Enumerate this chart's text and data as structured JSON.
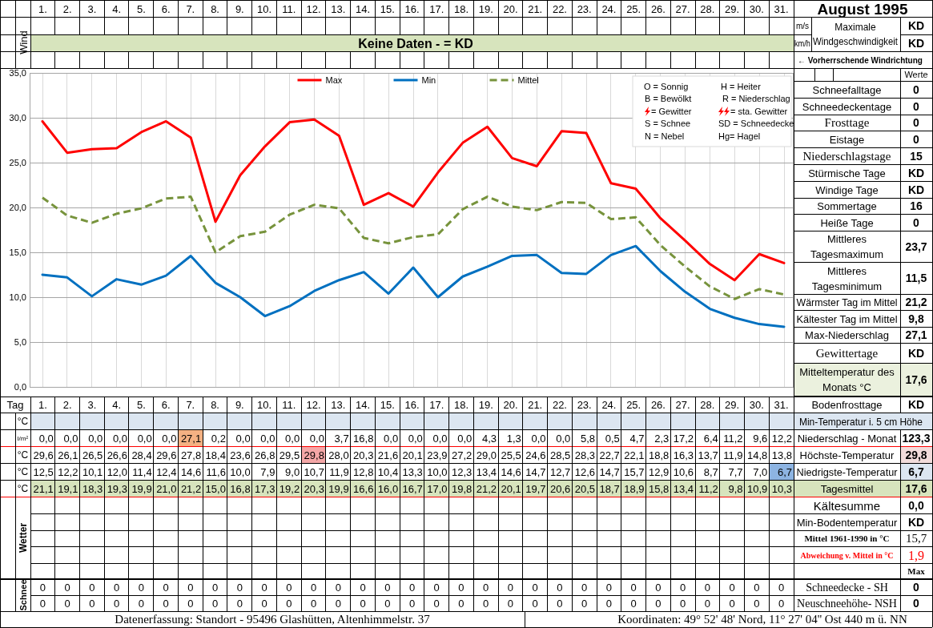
{
  "chart_data": {
    "type": "line",
    "title": "August 1995",
    "categories": [
      "1.",
      "2.",
      "3.",
      "4.",
      "5.",
      "6.",
      "7.",
      "8.",
      "9.",
      "10.",
      "11.",
      "12.",
      "13.",
      "14.",
      "15.",
      "16.",
      "17.",
      "18.",
      "19.",
      "20.",
      "21.",
      "22.",
      "23.",
      "24.",
      "25.",
      "26.",
      "27.",
      "28.",
      "29.",
      "30.",
      "31."
    ],
    "series": [
      {
        "name": "Max",
        "color": "#ff0000",
        "values": [
          29.6,
          26.1,
          26.5,
          26.6,
          28.4,
          29.6,
          27.8,
          18.4,
          23.6,
          26.8,
          29.5,
          29.8,
          28.0,
          20.3,
          21.6,
          20.1,
          23.9,
          27.2,
          29.0,
          25.5,
          24.6,
          28.5,
          28.3,
          22.7,
          22.1,
          18.8,
          16.3,
          13.7,
          11.9,
          14.8,
          13.8
        ],
        "value_labels": [
          "29,6",
          "26,1",
          "26,5",
          "26,6",
          "28,4",
          "29,6",
          "27,8",
          "18,4",
          "23,6",
          "26,8",
          "29,5",
          "29,8",
          "28,0",
          "20,3",
          "21,6",
          "20,1",
          "23,9",
          "27,2",
          "29,0",
          "25,5",
          "24,6",
          "28,5",
          "28,3",
          "22,7",
          "22,1",
          "18,8",
          "16,3",
          "13,7",
          "11,9",
          "14,8",
          "13,8"
        ]
      },
      {
        "name": "Min",
        "color": "#0070c0",
        "values": [
          12.5,
          12.2,
          10.1,
          12.0,
          11.4,
          12.4,
          14.6,
          11.6,
          10.0,
          7.9,
          9.0,
          10.7,
          11.9,
          12.8,
          10.4,
          13.3,
          10.0,
          12.3,
          13.4,
          14.6,
          14.7,
          12.7,
          12.6,
          14.7,
          15.7,
          12.9,
          10.6,
          8.7,
          7.7,
          7.0,
          6.7
        ],
        "value_labels": [
          "12,5",
          "12,2",
          "10,1",
          "12,0",
          "11,4",
          "12,4",
          "14,6",
          "11,6",
          "10,0",
          "7,9",
          "9,0",
          "10,7",
          "11,9",
          "12,8",
          "10,4",
          "13,3",
          "10,0",
          "12,3",
          "13,4",
          "14,6",
          "14,7",
          "12,7",
          "12,6",
          "14,7",
          "15,7",
          "12,9",
          "10,6",
          "8,7",
          "7,7",
          "7,0",
          "6,7"
        ]
      },
      {
        "name": "Mittel",
        "color": "#77933c",
        "line_style": "dashed",
        "values": [
          21.1,
          19.1,
          18.3,
          19.3,
          19.9,
          21.0,
          21.2,
          15.0,
          16.8,
          17.3,
          19.2,
          20.3,
          19.9,
          16.6,
          16.0,
          16.7,
          17.0,
          19.8,
          21.2,
          20.1,
          19.7,
          20.6,
          20.5,
          18.7,
          18.9,
          15.8,
          13.4,
          11.2,
          9.8,
          10.9,
          10.3
        ],
        "value_labels": [
          "21,1",
          "19,1",
          "18,3",
          "19,3",
          "19,9",
          "21,0",
          "21,2",
          "15,0",
          "16,8",
          "17,3",
          "19,2",
          "20,3",
          "19,9",
          "16,6",
          "16,0",
          "16,7",
          "17,0",
          "19,8",
          "21,2",
          "20,1",
          "19,7",
          "20,6",
          "20,5",
          "18,7",
          "18,9",
          "15,8",
          "13,4",
          "11,2",
          "9,8",
          "10,9",
          "10,3"
        ]
      }
    ],
    "ylim": [
      0,
      35
    ],
    "yticks": [
      {
        "value": 0,
        "label": "0,0"
      },
      {
        "value": 5,
        "label": "5,0"
      },
      {
        "value": 10,
        "label": "10,0"
      },
      {
        "value": 15,
        "label": "15,0"
      },
      {
        "value": 20,
        "label": "20,0"
      },
      {
        "value": 25,
        "label": "25,0"
      },
      {
        "value": 30,
        "label": "30,0"
      },
      {
        "value": 35,
        "label": "35,0"
      }
    ],
    "grid": true,
    "legend": "top",
    "annotations": [
      "Wind",
      "Keine Daten - = KD",
      "m/s",
      "km/h",
      "Maximale Windgeschwindigkeit",
      "KD",
      "KD",
      "← Vorherrschende Windrichtung",
      "Werte",
      "O = Sonnig",
      "H = Heiter",
      "B = Bewölkt",
      "R = Niederschlag",
      "= Gewitter",
      "= sta. Gewitter",
      "S = Schnee",
      "SD = Schneedecke",
      "N = Nebel",
      "Hg= Hagel",
      "Schneefalltage",
      "0",
      "Schneedeckentage",
      "0",
      "Frosttage",
      "0",
      "Eistage",
      "0",
      "Niederschlagstage",
      "15",
      "Stürmische Tage",
      "KD",
      "Windige Tage",
      "KD",
      "Sommertage",
      "16",
      "Heiße Tage",
      "0",
      "Mittleres Tagesmaximum",
      "23,7",
      "Mittleres Tagesminimum",
      "11,5",
      "Wärmster Tag im Mittel",
      "21,2",
      "Kältester Tag im Mittel",
      "9,8",
      "Max-Niederschlag",
      "27,1",
      "Gewittertage",
      "KD",
      "Mitteltemperatur des Monats °C",
      "17,6",
      "Bodenfrosttage",
      "KD",
      "Tag",
      "°C",
      "Min-Temperatur i. 5 cm Höhe",
      "l/m²",
      "0,0",
      "0,0",
      "0,0",
      "0,0",
      "0,0",
      "0,0",
      "27,1",
      "0,2",
      "0,0",
      "0,0",
      "0,0",
      "0,0",
      "3,7",
      "16,8",
      "0,0",
      "0,0",
      "0,0",
      "0,0",
      "4,3",
      "1,3",
      "0,0",
      "0,0",
      "5,8",
      "0,5",
      "4,7",
      "2,3",
      "17,2",
      "6,4",
      "11,2",
      "9,6",
      "12,2",
      "Niederschlag - Monat",
      "123,3",
      "°C",
      "Höchste-Temperatur",
      "29,8",
      "°C",
      "Niedrigste-Temperatur",
      "6,7",
      "°C",
      "Tagesmittel",
      "17,6",
      "Kältesumme",
      "0,0",
      "Min-Bodentemperatur",
      "KD",
      "Wetter",
      "Mittel 1961-1990 in °C",
      "15,7",
      "Abweichung v. Mittel in °C",
      "1,9",
      "Max",
      "Schnee",
      "0",
      "0",
      "0",
      "0",
      "0",
      "0",
      "0",
      "0",
      "0",
      "0",
      "0",
      "0",
      "0",
      "0",
      "0",
      "0",
      "0",
      "0",
      "0",
      "0",
      "0",
      "0",
      "0",
      "0",
      "0",
      "0",
      "0",
      "0",
      "0",
      "0",
      "0",
      "Schneedecke - SH",
      "0",
      "0",
      "0",
      "0",
      "0",
      "0",
      "0",
      "0",
      "0",
      "0",
      "0",
      "0",
      "0",
      "0",
      "0",
      "0",
      "0",
      "0",
      "0",
      "0",
      "0",
      "0",
      "0",
      "0",
      "0",
      "0",
      "0",
      "0",
      "0",
      "0",
      "0",
      "0",
      "Neuschneehöhe- NSH",
      "0",
      "Datenerfassung: Standort - 95496 Glashütten, Altenhimmelstr. 37",
      "Koordinaten: 49° 52' 48' Nord, 11° 27' 04'' Ost 440 m ü. NN"
    ]
  }
}
